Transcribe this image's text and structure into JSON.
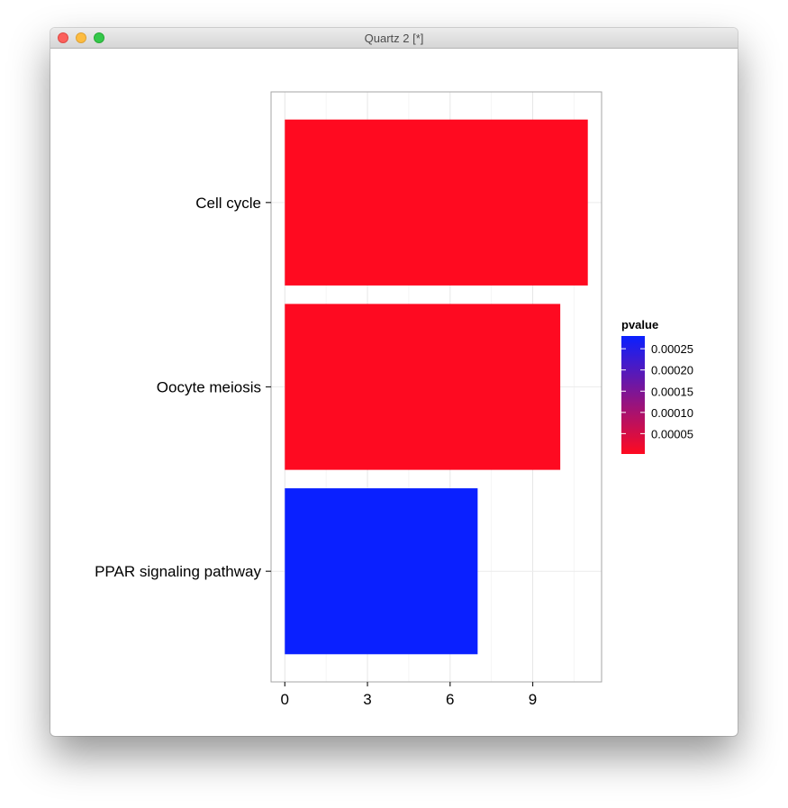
{
  "window": {
    "title": "Quartz 2 [*]"
  },
  "chart_data": {
    "type": "bar",
    "orientation": "horizontal",
    "categories": [
      "Cell cycle",
      "Oocyte meiosis",
      "PPAR signaling pathway"
    ],
    "values": [
      11,
      10,
      7
    ],
    "pvalues": [
      2e-06,
      3e-06,
      0.00028
    ],
    "xticks": [
      "0",
      "3",
      "6",
      "9"
    ],
    "xlim": [
      -0.5,
      11.5
    ],
    "grid": true,
    "legend": {
      "title": "pvalue",
      "labels": [
        "0.00025",
        "0.00020",
        "0.00015",
        "0.00010",
        "0.00005"
      ],
      "range": [
        2e-06,
        0.00028
      ],
      "low_color": "#ff0a20",
      "high_color": "#0a20ff",
      "placement": "right"
    },
    "xlabel": "",
    "ylabel": ""
  }
}
